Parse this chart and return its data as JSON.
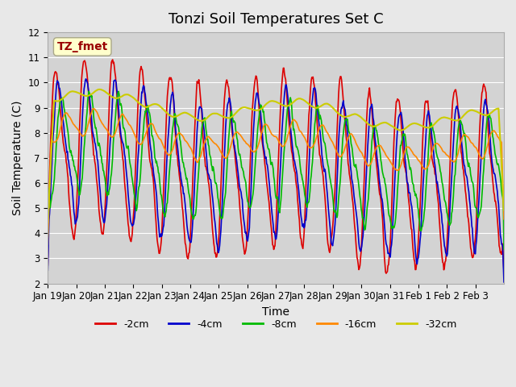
{
  "title": "Tonzi Soil Temperatures Set C",
  "xlabel": "Time",
  "ylabel": "Soil Temperature (C)",
  "ylim": [
    2.0,
    12.0
  ],
  "yticks": [
    2.0,
    3.0,
    4.0,
    5.0,
    6.0,
    7.0,
    8.0,
    9.0,
    10.0,
    11.0,
    12.0
  ],
  "xtick_labels": [
    "Jan 19",
    "Jan 20",
    "Jan 21",
    "Jan 22",
    "Jan 23",
    "Jan 24",
    "Jan 25",
    "Jan 26",
    "Jan 27",
    "Jan 28",
    "Jan 29",
    "Jan 30",
    "Jan 31",
    "Feb 1",
    "Feb 2",
    "Feb 3"
  ],
  "legend_entries": [
    "-2cm",
    "-4cm",
    "-8cm",
    "-16cm",
    "-32cm"
  ],
  "line_colors": [
    "#dd0000",
    "#0000cc",
    "#00bb00",
    "#ff8800",
    "#cccc00"
  ],
  "line_widths": [
    1.2,
    1.2,
    1.2,
    1.2,
    1.5
  ],
  "annotation_text": "TZ_fmet",
  "annotation_color": "#990000",
  "annotation_bg": "#ffffcc",
  "bg_color": "#e8e8e8",
  "plot_bg_color": "#d3d3d3",
  "grid_color": "#ffffff",
  "title_fontsize": 13,
  "label_fontsize": 10,
  "tick_fontsize": 8.5
}
